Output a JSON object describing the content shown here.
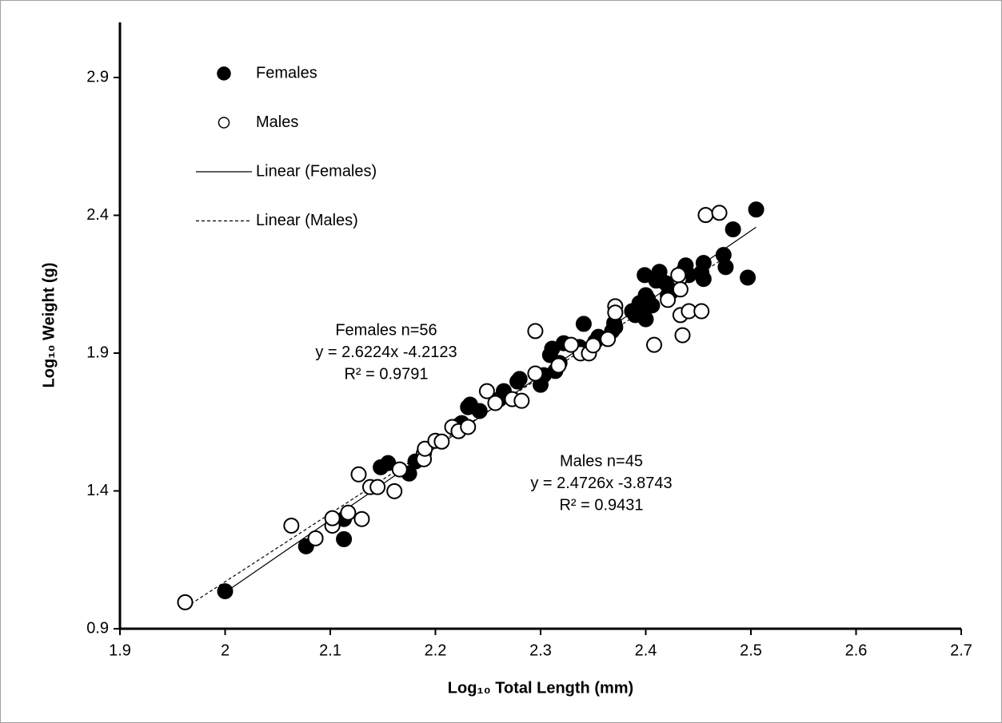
{
  "chart_data": {
    "type": "scatter",
    "xlabel": "Log₁₀ Total Length (mm)",
    "ylabel": "Log₁₀ Weight (g)",
    "xlim": [
      1.9,
      2.7
    ],
    "ylim": [
      0.9,
      3.1
    ],
    "xticks": [
      1.9,
      2,
      2.1,
      2.2,
      2.3,
      2.4,
      2.5,
      2.6,
      2.7
    ],
    "yticks": [
      0.9,
      1.4,
      1.9,
      2.4,
      2.9
    ],
    "legend": "upper left",
    "series": [
      {
        "name": "Females",
        "type": "scatter",
        "marker": "filled",
        "color": "#000000",
        "x": [
          2.0,
          2.077,
          2.113,
          2.113,
          2.148,
          2.155,
          2.175,
          2.181,
          2.223,
          2.225,
          2.231,
          2.233,
          2.242,
          2.261,
          2.265,
          2.278,
          2.28,
          2.3,
          2.303,
          2.311,
          2.309,
          2.314,
          2.318,
          2.322,
          2.337,
          2.341,
          2.352,
          2.355,
          2.368,
          2.37,
          2.371,
          2.387,
          2.39,
          2.394,
          2.4,
          2.402,
          2.406,
          2.398,
          2.4,
          2.399,
          2.413,
          2.419,
          2.421,
          2.425,
          2.436,
          2.438,
          2.441,
          2.453,
          2.455,
          2.455,
          2.474,
          2.476,
          2.483,
          2.497,
          2.505,
          2.41
        ],
        "values": [
          1.036,
          1.199,
          1.225,
          1.298,
          1.486,
          1.501,
          1.463,
          1.507,
          1.64,
          1.646,
          1.704,
          1.713,
          1.69,
          1.733,
          1.762,
          1.797,
          1.806,
          1.785,
          1.82,
          1.916,
          1.893,
          1.835,
          1.864,
          1.936,
          1.922,
          2.006,
          1.942,
          1.959,
          1.98,
          2.009,
          1.994,
          2.052,
          2.038,
          2.081,
          2.11,
          2.096,
          2.073,
          2.038,
          2.023,
          2.183,
          2.195,
          2.154,
          2.11,
          2.125,
          2.198,
          2.218,
          2.183,
          2.192,
          2.169,
          2.227,
          2.256,
          2.212,
          2.349,
          2.174,
          2.421,
          2.163
        ]
      },
      {
        "name": "Males",
        "type": "scatter",
        "marker": "open",
        "color": "#000000",
        "x": [
          1.962,
          2.063,
          2.086,
          2.102,
          2.102,
          2.117,
          2.13,
          2.127,
          2.138,
          2.145,
          2.161,
          2.166,
          2.189,
          2.189,
          2.19,
          2.2,
          2.206,
          2.216,
          2.222,
          2.231,
          2.249,
          2.257,
          2.273,
          2.282,
          2.295,
          2.295,
          2.317,
          2.338,
          2.346,
          2.35,
          2.364,
          2.371,
          2.371,
          2.408,
          2.432,
          2.433,
          2.431,
          2.433,
          2.435,
          2.441,
          2.453,
          2.457,
          2.47,
          2.421,
          2.329
        ],
        "values": [
          0.996,
          1.274,
          1.228,
          1.274,
          1.301,
          1.321,
          1.298,
          1.46,
          1.414,
          1.414,
          1.399,
          1.478,
          1.536,
          1.515,
          1.553,
          1.582,
          1.579,
          1.632,
          1.617,
          1.632,
          1.762,
          1.719,
          1.733,
          1.727,
          1.826,
          1.98,
          1.855,
          1.899,
          1.899,
          1.928,
          1.951,
          2.07,
          2.047,
          1.93,
          2.169,
          2.131,
          2.183,
          2.038,
          1.965,
          2.052,
          2.052,
          2.401,
          2.409,
          2.093,
          1.93
        ]
      },
      {
        "name": "Linear (Females)",
        "type": "line",
        "linestyle": "solid",
        "color": "#000000",
        "x": [
          2.0,
          2.505
        ],
        "values": [
          1.032,
          2.357
        ]
      },
      {
        "name": "Linear (Males)",
        "type": "line",
        "linestyle": "dashed",
        "color": "#000000",
        "x": [
          1.963,
          2.47
        ],
        "values": [
          0.979,
          2.233
        ]
      }
    ],
    "annotations": [
      [
        "Females n=56",
        "y = 2.6224x -4.2123",
        "R² = 0.9791"
      ],
      [
        "Males n=45",
        "y = 2.4726x -3.8743",
        "R² = 0.9431"
      ]
    ]
  }
}
